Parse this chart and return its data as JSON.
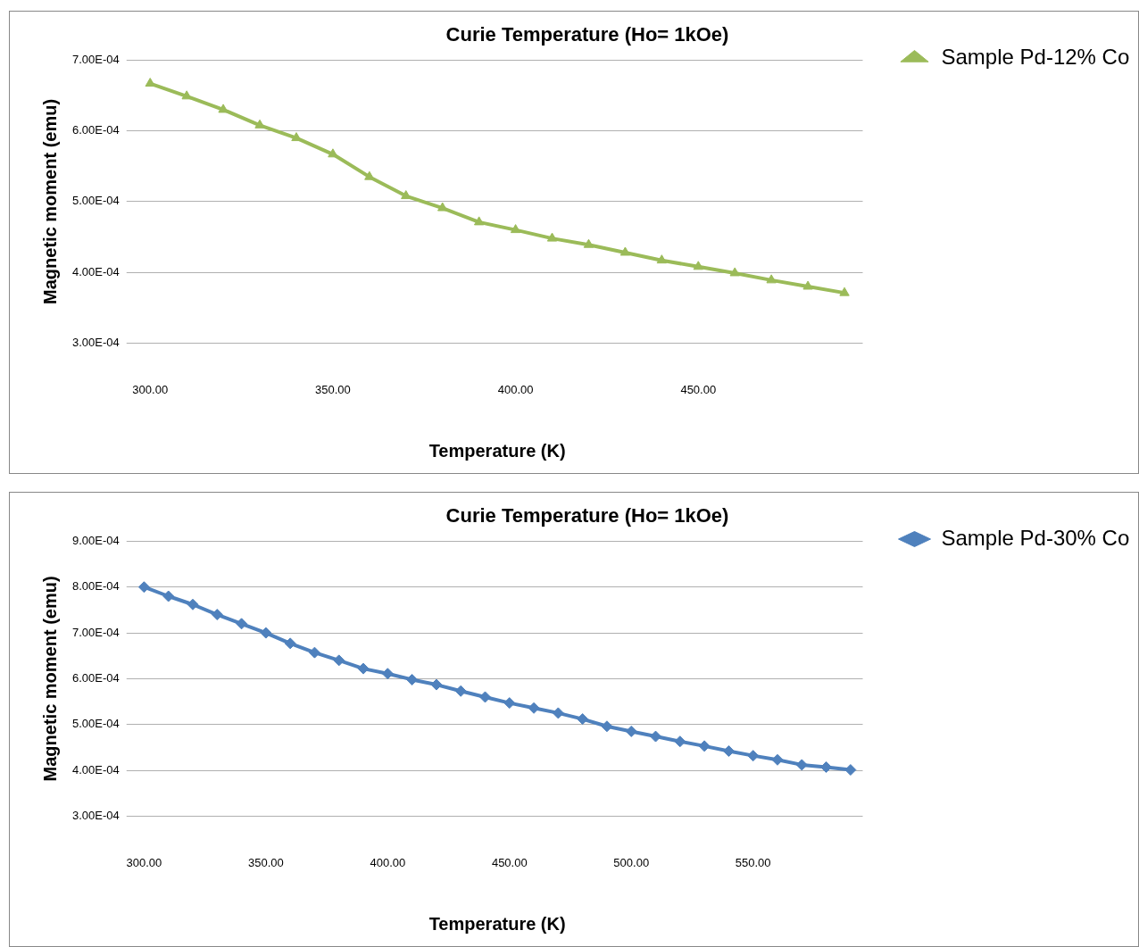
{
  "chart_data": [
    {
      "type": "line",
      "title": "Curie Temperature (Ho= 1kOe)",
      "xlabel": "Temperature (K)",
      "ylabel": "Magnetic moment (emu)",
      "x": [
        300,
        310,
        320,
        330,
        340,
        350,
        360,
        370,
        380,
        390,
        400,
        410,
        420,
        430,
        440,
        450,
        460,
        470,
        480,
        490
      ],
      "series": [
        {
          "name": "Sample Pd-12% Co",
          "color": "#9bbb59",
          "values": [
            0.000667,
            0.000649,
            0.00063,
            0.000608,
            0.00059,
            0.000567,
            0.000535,
            0.000508,
            0.000491,
            0.000471,
            0.00046,
            0.000448,
            0.000439,
            0.000428,
            0.000417,
            0.000408,
            0.000399,
            0.000389,
            0.00038,
            0.000371
          ]
        }
      ],
      "marker": "triangle",
      "line_style": "solid",
      "grid": "y",
      "legend": "right",
      "xlim": [
        295,
        495
      ],
      "xticks": [
        {
          "value": 300,
          "label": "300.00"
        },
        {
          "value": 350,
          "label": "350.00"
        },
        {
          "value": 400,
          "label": "400.00"
        },
        {
          "value": 450,
          "label": "450.00"
        }
      ],
      "ylim": [
        0.0003,
        0.0007
      ],
      "yticks": [
        {
          "value": 0.0003,
          "label": "3.00E-04"
        },
        {
          "value": 0.0004,
          "label": "4.00E-04"
        },
        {
          "value": 0.0005,
          "label": "5.00E-04"
        },
        {
          "value": 0.0006,
          "label": "6.00E-04"
        },
        {
          "value": 0.0007,
          "label": "7.00E-04"
        }
      ]
    },
    {
      "type": "line",
      "title": "Curie Temperature (Ho= 1kOe)",
      "xlabel": "Temperature (K)",
      "ylabel": "Magnetic moment (emu)",
      "x": [
        300,
        310,
        320,
        330,
        340,
        350,
        360,
        370,
        380,
        390,
        400,
        410,
        420,
        430,
        440,
        450,
        460,
        470,
        480,
        490,
        500,
        510,
        520,
        530,
        540,
        550,
        560,
        570,
        580,
        590
      ],
      "series": [
        {
          "name": "Sample Pd-30% Co",
          "color": "#4f81bd",
          "values": [
            0.0008,
            0.00078,
            0.000762,
            0.00074,
            0.00072,
            0.0007,
            0.000677,
            0.000657,
            0.00064,
            0.000622,
            0.000611,
            0.000598,
            0.000587,
            0.000573,
            0.00056,
            0.000547,
            0.000536,
            0.000525,
            0.000512,
            0.000496,
            0.000485,
            0.000474,
            0.000463,
            0.000453,
            0.000442,
            0.000432,
            0.000423,
            0.000412,
            0.000407,
            0.000401
          ]
        }
      ],
      "marker": "diamond",
      "line_style": "solid",
      "grid": "y",
      "legend": "right",
      "xlim": [
        295,
        595
      ],
      "xticks": [
        {
          "value": 300,
          "label": "300.00"
        },
        {
          "value": 350,
          "label": "350.00"
        },
        {
          "value": 400,
          "label": "400.00"
        },
        {
          "value": 450,
          "label": "450.00"
        },
        {
          "value": 500,
          "label": "500.00"
        },
        {
          "value": 550,
          "label": "550.00"
        }
      ],
      "ylim": [
        0.0003,
        0.0009
      ],
      "yticks": [
        {
          "value": 0.0003,
          "label": "3.00E-04"
        },
        {
          "value": 0.0004,
          "label": "4.00E-04"
        },
        {
          "value": 0.0005,
          "label": "5.00E-04"
        },
        {
          "value": 0.0006,
          "label": "6.00E-04"
        },
        {
          "value": 0.0007,
          "label": "7.00E-04"
        },
        {
          "value": 0.0008,
          "label": "8.00E-04"
        },
        {
          "value": 0.0009,
          "label": "9.00E-04"
        }
      ]
    }
  ]
}
